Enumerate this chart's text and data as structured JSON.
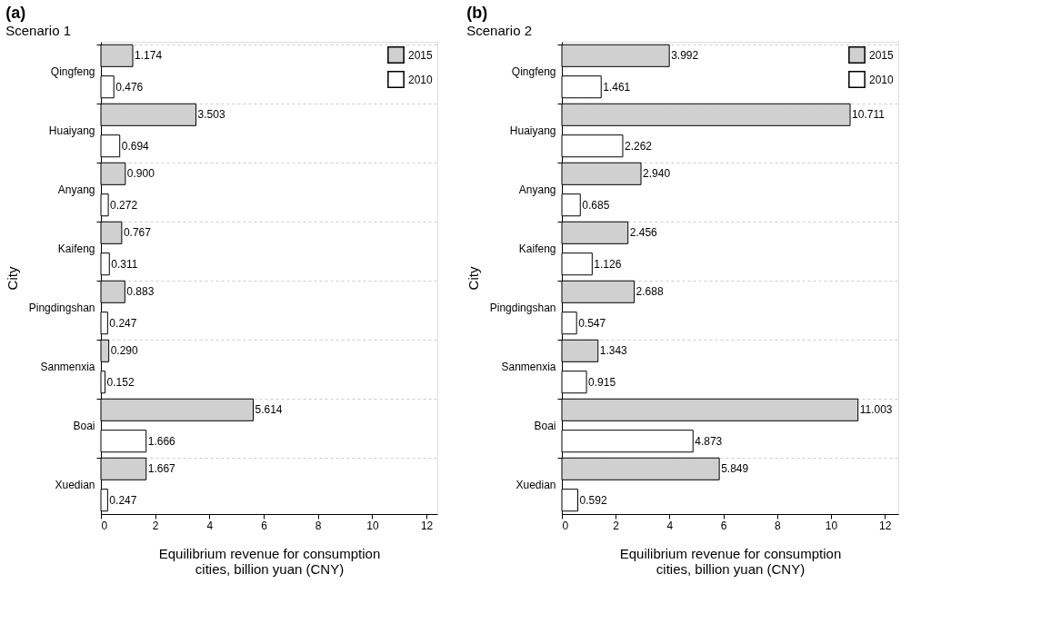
{
  "chart_data": [
    {
      "type": "bar",
      "orientation": "horizontal",
      "title": "(a)",
      "subtitle": "Scenario 1",
      "xlabel": "Equilibrium revenue for consumption cities, billion yuan (CNY)",
      "ylabel": "City",
      "categories": [
        "Qingfeng",
        "Huaiyang",
        "Anyang",
        "Kaifeng",
        "Pingdingshan",
        "Sanmenxia",
        "Boai",
        "Xuedian"
      ],
      "series": [
        {
          "name": "2015",
          "color": "#d0d0d0",
          "values": [
            1.174,
            3.503,
            0.9,
            0.767,
            0.883,
            0.29,
            5.614,
            1.667
          ],
          "value_labels": [
            "1.174",
            "3.503",
            "0.900",
            "0.767",
            "0.883",
            "0.290",
            "5.614",
            "1.667"
          ]
        },
        {
          "name": "2010",
          "color": "#ffffff",
          "values": [
            0.476,
            0.694,
            0.272,
            0.311,
            0.247,
            0.152,
            1.666,
            0.247
          ],
          "value_labels": [
            "0.476",
            "0.694",
            "0.272",
            "0.311",
            "0.247",
            "0.152",
            "1.666",
            "0.247"
          ]
        }
      ],
      "xlim": [
        0,
        12.4
      ],
      "xticks": [
        0,
        2,
        4,
        6,
        8,
        10,
        12
      ],
      "grid": "y",
      "legend": "top right"
    },
    {
      "type": "bar",
      "orientation": "horizontal",
      "title": "(b)",
      "subtitle": "Scenario 2",
      "xlabel": "Equilibrium revenue for consumption cities, billion yuan (CNY)",
      "ylabel": "City",
      "categories": [
        "Qingfeng",
        "Huaiyang",
        "Anyang",
        "Kaifeng",
        "Pingdingshan",
        "Sanmenxia",
        "Boai",
        "Xuedian"
      ],
      "series": [
        {
          "name": "2015",
          "color": "#d0d0d0",
          "values": [
            3.992,
            10.711,
            2.94,
            2.456,
            2.688,
            1.343,
            11.003,
            5.849
          ],
          "value_labels": [
            "3.992",
            "10.711",
            "2.940",
            "2.456",
            "2.688",
            "1.343",
            "11.003",
            "5.849"
          ]
        },
        {
          "name": "2010",
          "color": "#ffffff",
          "values": [
            1.461,
            2.262,
            0.685,
            1.126,
            0.547,
            0.915,
            4.873,
            0.592
          ],
          "value_labels": [
            "1.461",
            "2.262",
            "0.685",
            "1.126",
            "0.547",
            "0.915",
            "4.873",
            "0.592"
          ]
        }
      ],
      "xlim": [
        0,
        12.5
      ],
      "xticks": [
        0,
        2,
        4,
        6,
        8,
        10,
        12
      ],
      "grid": "y",
      "legend": "top right"
    }
  ]
}
